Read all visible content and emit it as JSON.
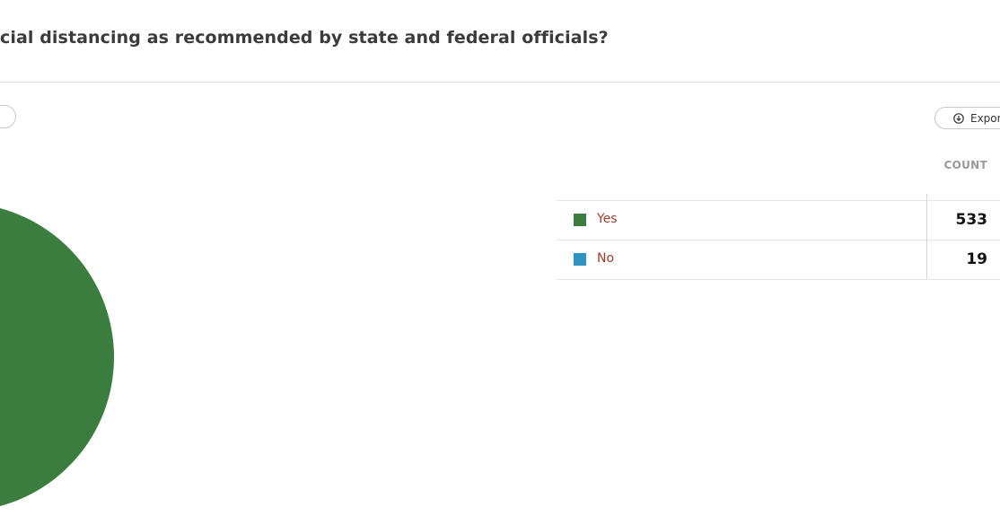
{
  "header": {
    "title": "cial distancing as recommended by state and federal officials?"
  },
  "toolbar": {
    "export": "Export"
  },
  "chart_data": {
    "type": "pie",
    "categories": [
      "Yes",
      "No"
    ],
    "values": [
      533,
      19
    ],
    "colors": [
      "#3a7d3f",
      "#2e93c2"
    ],
    "value_column": "COUNT"
  }
}
